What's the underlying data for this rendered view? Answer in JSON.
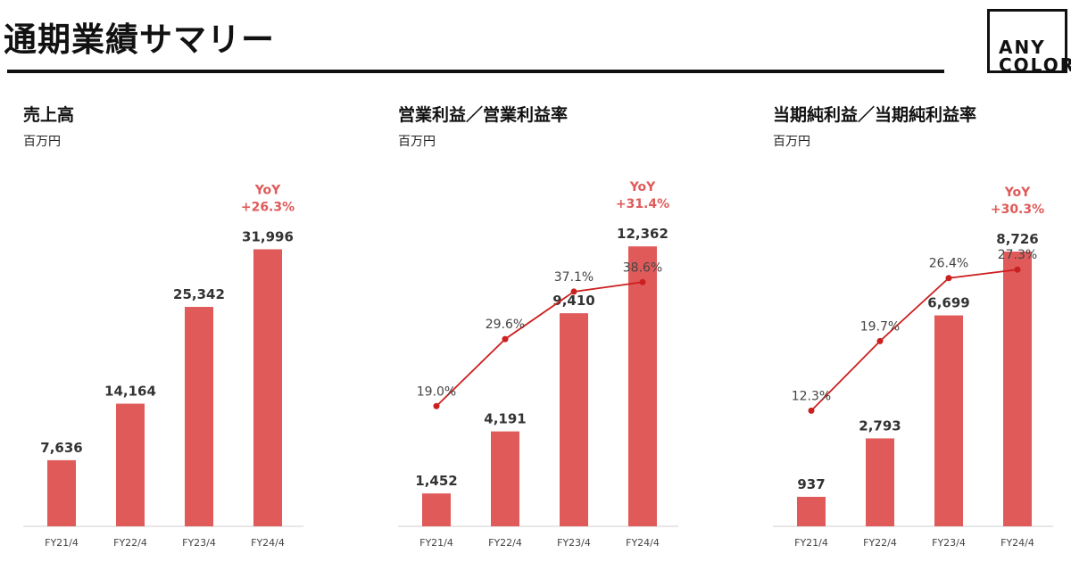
{
  "header": {
    "title": "通期業績サマリー",
    "logo_line1": "ANY",
    "logo_line2": "COLOR"
  },
  "colors": {
    "bar": "#e05a5a",
    "line": "#cc1f1f",
    "yoy": "#e05a5a",
    "text": "#333333"
  },
  "chart_data": [
    {
      "type": "bar",
      "title": "売上高",
      "unit": "百万円",
      "categories": [
        "FY21/4",
        "FY22/4",
        "FY23/4",
        "FY24/4"
      ],
      "values": [
        7636,
        14164,
        25342,
        31996
      ],
      "value_labels": [
        "7,636",
        "14,164",
        "25,342",
        "31,996"
      ],
      "ylim": [
        0,
        34000
      ],
      "yoy": {
        "line1": "YoY",
        "line2": "+26.3%"
      }
    },
    {
      "type": "bar+line",
      "title": "営業利益／営業利益率",
      "unit": "百万円",
      "categories": [
        "FY21/4",
        "FY22/4",
        "FY23/4",
        "FY24/4"
      ],
      "values": [
        1452,
        4191,
        9410,
        12362
      ],
      "value_labels": [
        "1,452",
        "4,191",
        "9,410",
        "12,362"
      ],
      "ylim": [
        0,
        13000
      ],
      "rates": [
        19.0,
        29.6,
        37.1,
        38.6
      ],
      "rate_labels": [
        "19.0%",
        "29.6%",
        "37.1%",
        "38.6%"
      ],
      "rate_ylim": [
        0,
        55
      ],
      "yoy": {
        "line1": "YoY",
        "line2": "+31.4%"
      }
    },
    {
      "type": "bar+line",
      "title": "当期純利益／当期純利益率",
      "unit": "百万円",
      "categories": [
        "FY21/4",
        "FY22/4",
        "FY23/4",
        "FY24/4"
      ],
      "values": [
        937,
        2793,
        6699,
        8726
      ],
      "value_labels": [
        "937",
        "2,793",
        "6,699",
        "8,726"
      ],
      "ylim": [
        0,
        9350
      ],
      "rates": [
        12.3,
        19.7,
        26.4,
        27.3
      ],
      "rate_labels": [
        "12.3%",
        "19.7%",
        "26.4%",
        "27.3%"
      ],
      "rate_ylim": [
        0,
        37
      ],
      "yoy": {
        "line1": "YoY",
        "line2": "+30.3%"
      }
    }
  ]
}
